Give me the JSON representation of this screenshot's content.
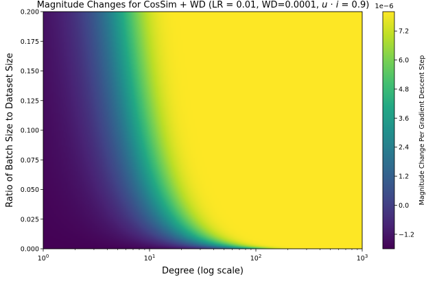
{
  "chart_data": {
    "type": "heatmap",
    "title": "Magnitude Changes for CosSim + WD (LR = 0.01, WD=0.0001, u · i = 0.9)",
    "title_parts": {
      "prefix": "Magnitude Changes for CosSim + WD (LR = 0.01, WD=0.0001, ",
      "u": "u",
      "dot": " · ",
      "i": "i",
      "suffix": " = 0.9)"
    },
    "xlabel": "Degree (log scale)",
    "ylabel": "Ratio of Batch Size to Dataset Size",
    "x_scale": "log",
    "xlim": [
      1,
      1000
    ],
    "ylim": [
      0.0,
      0.2
    ],
    "x_ticks": [
      {
        "base": "10",
        "exp": "0",
        "value": 1
      },
      {
        "base": "10",
        "exp": "1",
        "value": 10
      },
      {
        "base": "10",
        "exp": "2",
        "value": 100
      },
      {
        "base": "10",
        "exp": "3",
        "value": 1000
      }
    ],
    "y_ticks": [
      {
        "label": "0.000",
        "value": 0.0
      },
      {
        "label": "0.025",
        "value": 0.025
      },
      {
        "label": "0.050",
        "value": 0.05
      },
      {
        "label": "0.075",
        "value": 0.075
      },
      {
        "label": "0.100",
        "value": 0.1
      },
      {
        "label": "0.125",
        "value": 0.125
      },
      {
        "label": "0.150",
        "value": 0.15
      },
      {
        "label": "0.175",
        "value": 0.175
      },
      {
        "label": "0.200",
        "value": 0.2
      }
    ],
    "colorbar": {
      "label": "Magnitude Change Per Gradient Descent Step",
      "offset_text": "1e−6",
      "colormap": "viridis",
      "range": [
        -1.8,
        8.0
      ],
      "ticks": [
        {
          "label": "−1.2",
          "value": -1.2
        },
        {
          "label": "0.0",
          "value": 0.0
        },
        {
          "label": "1.2",
          "value": 1.2
        },
        {
          "label": "2.4",
          "value": 2.4
        },
        {
          "label": "3.6",
          "value": 3.6
        },
        {
          "label": "4.8",
          "value": 4.8
        },
        {
          "label": "6.0",
          "value": 6.0
        },
        {
          "label": "7.2",
          "value": 7.2
        }
      ]
    },
    "colormap_stops": [
      "#440154",
      "#482475",
      "#414487",
      "#355f8d",
      "#2a788e",
      "#21918c",
      "#22a884",
      "#44bf70",
      "#7ad151",
      "#bddf26",
      "#fde725"
    ],
    "color_mid_value": 2.0,
    "grid": false
  }
}
